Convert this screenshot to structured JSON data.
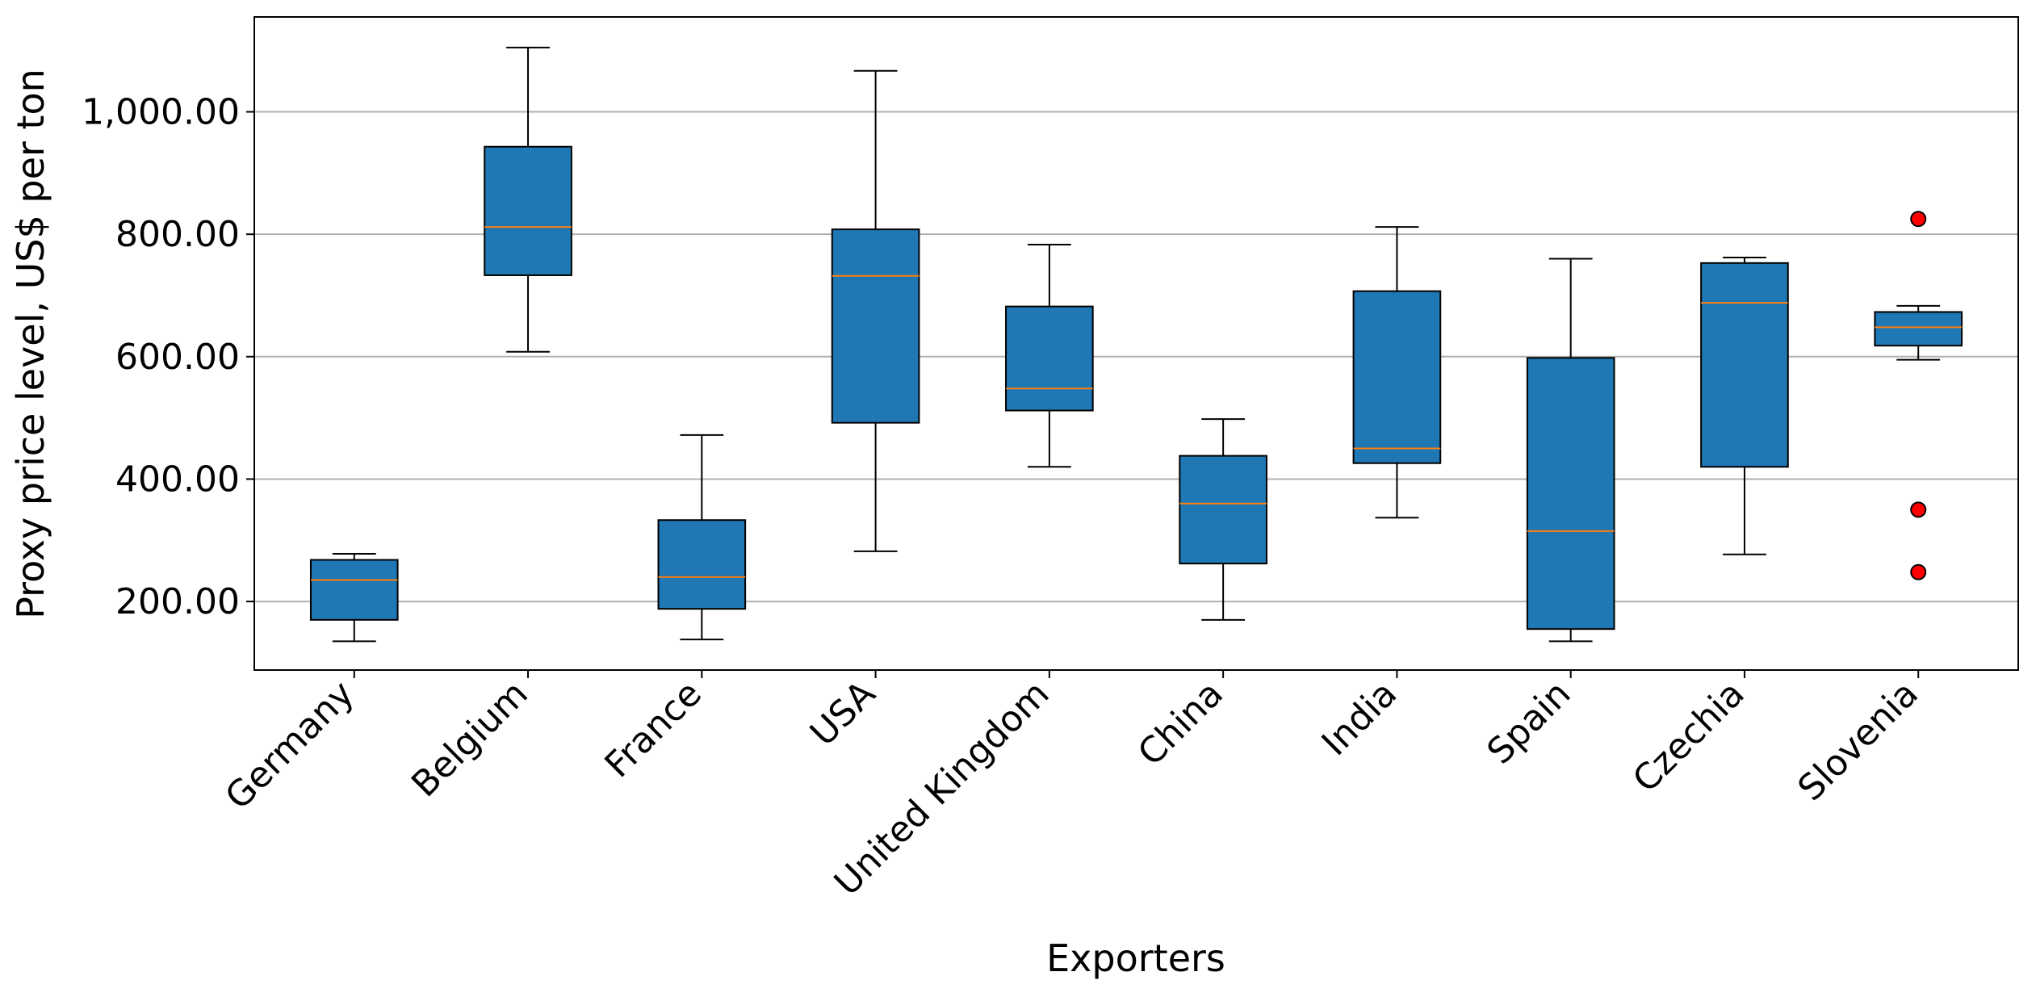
{
  "chart_data": {
    "type": "box",
    "title": "",
    "xlabel": "Exporters",
    "ylabel": "Proxy price level, US$ per ton",
    "ylim": [
      88,
      1155
    ],
    "yticks": [
      200,
      400,
      600,
      800,
      1000
    ],
    "ytick_labels": [
      "200.00",
      "400.00",
      "600.00",
      "800.00",
      "1,000.00"
    ],
    "grid": "horizontal",
    "box_color": "#1f77b4",
    "median_color": "#ff7f0e",
    "outlier_color": "#ff0000",
    "categories": [
      "Germany",
      "Belgium",
      "France",
      "USA",
      "United Kingdom",
      "China",
      "India",
      "Spain",
      "Czechia",
      "Slovenia"
    ],
    "boxes": [
      {
        "whislo": 135,
        "q1": 170,
        "med": 235,
        "q3": 268,
        "whishi": 278,
        "fliers": []
      },
      {
        "whislo": 608,
        "q1": 733,
        "med": 812,
        "q3": 943,
        "whishi": 1105,
        "fliers": []
      },
      {
        "whislo": 138,
        "q1": 188,
        "med": 240,
        "q3": 333,
        "whishi": 472,
        "fliers": []
      },
      {
        "whislo": 282,
        "q1": 492,
        "med": 732,
        "q3": 808,
        "whishi": 1067,
        "fliers": []
      },
      {
        "whislo": 420,
        "q1": 512,
        "med": 548,
        "q3": 682,
        "whishi": 783,
        "fliers": []
      },
      {
        "whislo": 170,
        "q1": 262,
        "med": 360,
        "q3": 438,
        "whishi": 498,
        "fliers": []
      },
      {
        "whislo": 337,
        "q1": 426,
        "med": 450,
        "q3": 707,
        "whishi": 812,
        "fliers": []
      },
      {
        "whislo": 135,
        "q1": 155,
        "med": 315,
        "q3": 598,
        "whishi": 760,
        "fliers": []
      },
      {
        "whislo": 277,
        "q1": 420,
        "med": 688,
        "q3": 753,
        "whishi": 762,
        "fliers": []
      },
      {
        "whislo": 595,
        "q1": 618,
        "med": 648,
        "q3": 673,
        "whishi": 683,
        "fliers": [
          825,
          350,
          248
        ]
      }
    ]
  }
}
